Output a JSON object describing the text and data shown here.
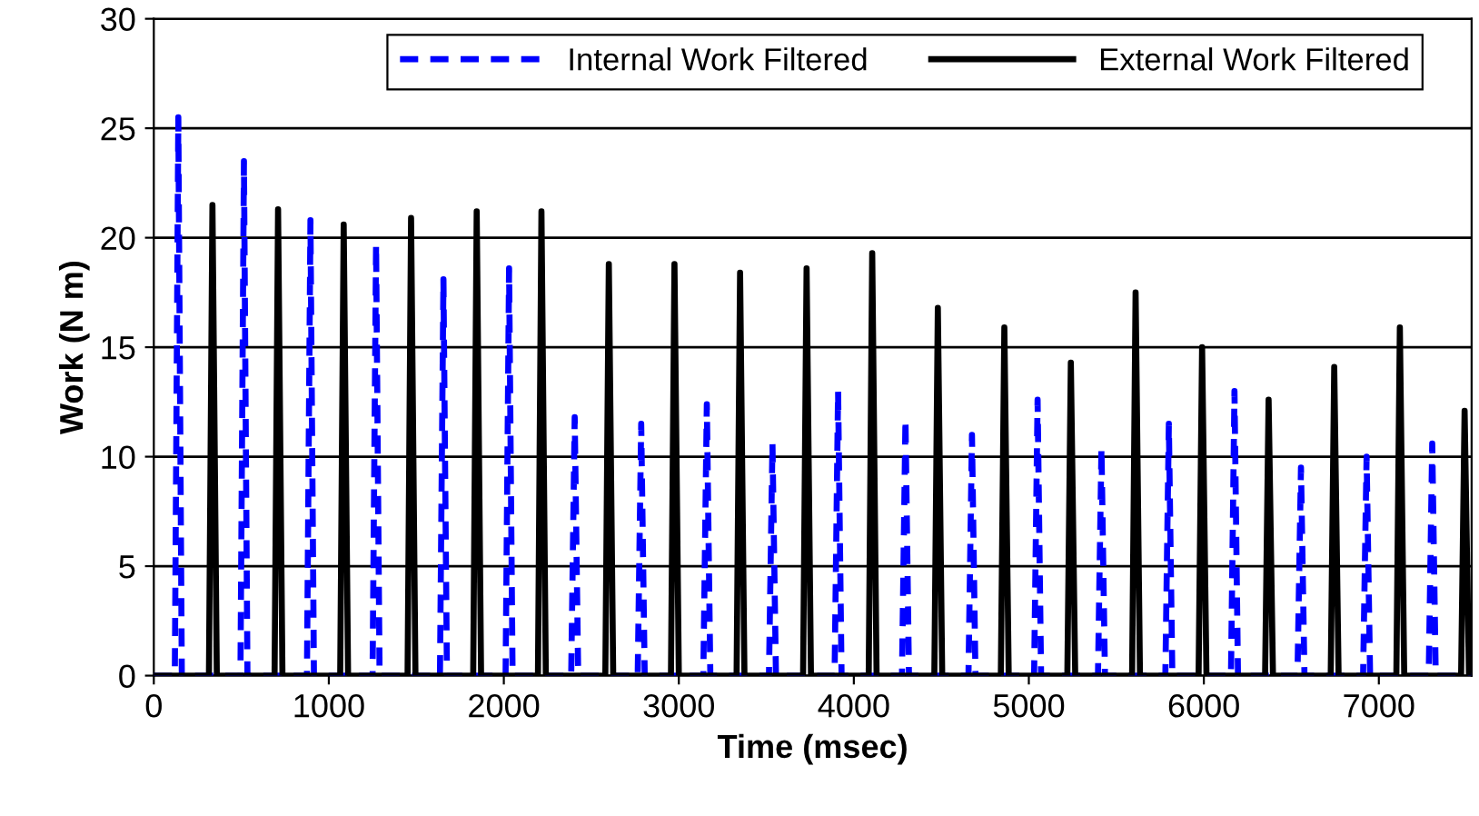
{
  "chart_data": {
    "type": "line",
    "xlabel": "Time (msec)",
    "ylabel": "Work (N m)",
    "xlim": [
      0,
      7530
    ],
    "ylim": [
      0,
      30
    ],
    "xticks": [
      0,
      1000,
      2000,
      3000,
      4000,
      5000,
      6000,
      7000
    ],
    "yticks": [
      0,
      5,
      10,
      15,
      20,
      25,
      30
    ],
    "grid": "y",
    "legend": "top",
    "marker": "none",
    "series": [
      {
        "name": "Internal Work Filtered",
        "color": "#0000ff",
        "line_style": "dashed",
        "x": [
          0,
          120,
          140,
          160,
          495,
          515,
          535,
          875,
          895,
          915,
          1250,
          1270,
          1290,
          1635,
          1655,
          1675,
          2010,
          2030,
          2050,
          2385,
          2405,
          2425,
          2765,
          2785,
          2805,
          3140,
          3160,
          3180,
          3515,
          3535,
          3555,
          3890,
          3910,
          3930,
          4275,
          4295,
          4315,
          4655,
          4675,
          4695,
          5030,
          5050,
          5070,
          5395,
          5415,
          5435,
          5780,
          5800,
          5820,
          6155,
          6175,
          6195,
          6535,
          6555,
          6575,
          6910,
          6930,
          6950,
          7285,
          7305,
          7325,
          7530
        ],
        "values": [
          0,
          0,
          25.5,
          0,
          0,
          23.5,
          0,
          0,
          20.8,
          0,
          0,
          19.7,
          0,
          0,
          18.1,
          0,
          0,
          18.6,
          0,
          0,
          11.8,
          0,
          0,
          11.5,
          0,
          0,
          12.4,
          0,
          0,
          10.6,
          0,
          0,
          13.0,
          0,
          0,
          11.7,
          0,
          0,
          11.0,
          0,
          0,
          12.6,
          0,
          0,
          10.4,
          0,
          0,
          11.5,
          0,
          0,
          13.0,
          0,
          0,
          9.5,
          0,
          0,
          10.0,
          0,
          0,
          10.6,
          0,
          0
        ]
      },
      {
        "name": "External Work Filtered",
        "color": "#000000",
        "line_style": "solid",
        "x": [
          0,
          315,
          335,
          360,
          690,
          710,
          735,
          1065,
          1085,
          1110,
          1450,
          1470,
          1495,
          1825,
          1845,
          1870,
          2195,
          2215,
          2240,
          2580,
          2600,
          2625,
          2955,
          2975,
          3000,
          3330,
          3350,
          3375,
          3710,
          3730,
          3755,
          4085,
          4105,
          4130,
          4460,
          4480,
          4505,
          4840,
          4860,
          4885,
          5220,
          5240,
          5265,
          5590,
          5610,
          5635,
          5970,
          5990,
          6015,
          6350,
          6370,
          6395,
          6725,
          6745,
          6770,
          7100,
          7120,
          7145,
          7470,
          7490,
          7515,
          7530
        ],
        "values": [
          0,
          0,
          21.5,
          0,
          0,
          21.3,
          0,
          0,
          20.6,
          0,
          0,
          20.9,
          0,
          0,
          21.2,
          0,
          0,
          21.2,
          0,
          0,
          18.8,
          0,
          0,
          18.8,
          0,
          0,
          18.4,
          0,
          0,
          18.6,
          0,
          0,
          19.3,
          0,
          0,
          16.8,
          0,
          0,
          15.9,
          0,
          0,
          14.3,
          0,
          0,
          17.5,
          0,
          0,
          15.0,
          0,
          0,
          12.6,
          0,
          0,
          14.1,
          0,
          0,
          15.9,
          0,
          0,
          12.1,
          0,
          0
        ]
      }
    ]
  }
}
